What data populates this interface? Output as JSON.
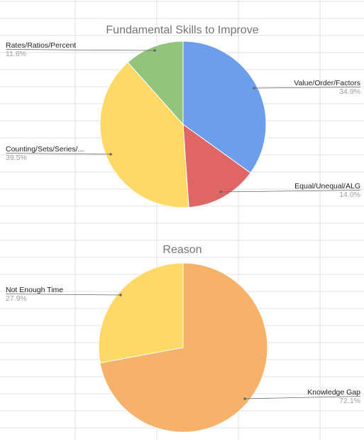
{
  "chart_data": [
    {
      "type": "pie",
      "title": "Fundamental Skills to Improve",
      "slices": [
        {
          "label": "Value/Order/Factors",
          "value": 34.9,
          "percent_label": "34.9%",
          "color": "#6d9eeb"
        },
        {
          "label": "Equal/Unequal/ALG",
          "value": 14.0,
          "percent_label": "14.0%",
          "color": "#e06666"
        },
        {
          "label": "Counting/Sets/Series/...",
          "value": 39.5,
          "percent_label": "39.5%",
          "color": "#ffd966"
        },
        {
          "label": "Rates/Ratios/Percent",
          "value": 11.6,
          "percent_label": "11.6%",
          "color": "#93c47d"
        }
      ]
    },
    {
      "type": "pie",
      "title": "Reason",
      "slices": [
        {
          "label": "Knowledge Gap",
          "value": 72.1,
          "percent_label": "72.1%",
          "color": "#f6b26b"
        },
        {
          "label": "Not Enough Time",
          "value": 27.9,
          "percent_label": "27.9%",
          "color": "#ffd966"
        }
      ]
    }
  ]
}
